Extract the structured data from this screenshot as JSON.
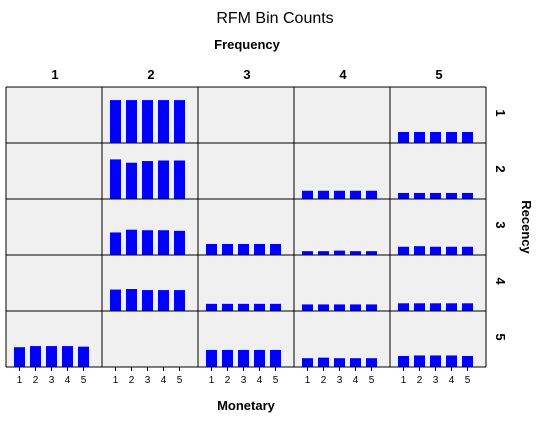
{
  "chart_data": {
    "type": "bar",
    "title": "RFM Bin Counts",
    "column_axis_title": "Frequency",
    "row_axis_title": "Recency",
    "xlabel": "Monetary",
    "frequency_levels": [
      "1",
      "2",
      "3",
      "4",
      "5"
    ],
    "recency_levels": [
      "1",
      "2",
      "3",
      "4",
      "5"
    ],
    "categories": [
      "1",
      "2",
      "3",
      "4",
      "5"
    ],
    "ylim": [
      0,
      1
    ],
    "colors": {
      "bar": "#0000ff",
      "panel_bg": "#f0f0f0",
      "border": "#000000"
    },
    "grid": false,
    "panels": [
      {
        "recency": "1",
        "frequency": "1",
        "values": [
          0,
          0,
          0,
          0,
          0
        ]
      },
      {
        "recency": "1",
        "frequency": "2",
        "values": [
          0.78,
          0.78,
          0.78,
          0.78,
          0.78
        ]
      },
      {
        "recency": "1",
        "frequency": "3",
        "values": [
          0,
          0,
          0,
          0,
          0
        ]
      },
      {
        "recency": "1",
        "frequency": "4",
        "values": [
          0,
          0,
          0,
          0,
          0
        ]
      },
      {
        "recency": "1",
        "frequency": "5",
        "values": [
          0.2,
          0.2,
          0.2,
          0.2,
          0.2
        ]
      },
      {
        "recency": "2",
        "frequency": "1",
        "values": [
          0,
          0,
          0,
          0,
          0
        ]
      },
      {
        "recency": "2",
        "frequency": "2",
        "values": [
          0.72,
          0.66,
          0.69,
          0.7,
          0.7
        ]
      },
      {
        "recency": "2",
        "frequency": "3",
        "values": [
          0,
          0,
          0,
          0,
          0
        ]
      },
      {
        "recency": "2",
        "frequency": "4",
        "values": [
          0.15,
          0.15,
          0.15,
          0.15,
          0.15
        ]
      },
      {
        "recency": "2",
        "frequency": "5",
        "values": [
          0.11,
          0.11,
          0.11,
          0.11,
          0.11
        ]
      },
      {
        "recency": "3",
        "frequency": "1",
        "values": [
          0,
          0,
          0,
          0,
          0
        ]
      },
      {
        "recency": "3",
        "frequency": "2",
        "values": [
          0.41,
          0.46,
          0.45,
          0.45,
          0.44
        ]
      },
      {
        "recency": "3",
        "frequency": "3",
        "values": [
          0.2,
          0.2,
          0.2,
          0.2,
          0.2
        ]
      },
      {
        "recency": "3",
        "frequency": "4",
        "values": [
          0.07,
          0.07,
          0.08,
          0.07,
          0.07
        ]
      },
      {
        "recency": "3",
        "frequency": "5",
        "values": [
          0.15,
          0.16,
          0.15,
          0.15,
          0.15
        ]
      },
      {
        "recency": "4",
        "frequency": "1",
        "values": [
          0,
          0,
          0,
          0,
          0
        ]
      },
      {
        "recency": "4",
        "frequency": "2",
        "values": [
          0.39,
          0.4,
          0.38,
          0.38,
          0.38
        ]
      },
      {
        "recency": "4",
        "frequency": "3",
        "values": [
          0.13,
          0.13,
          0.13,
          0.13,
          0.13
        ]
      },
      {
        "recency": "4",
        "frequency": "4",
        "values": [
          0.12,
          0.12,
          0.12,
          0.12,
          0.12
        ]
      },
      {
        "recency": "4",
        "frequency": "5",
        "values": [
          0.14,
          0.14,
          0.14,
          0.14,
          0.14
        ]
      },
      {
        "recency": "5",
        "frequency": "1",
        "values": [
          0.36,
          0.38,
          0.38,
          0.38,
          0.37
        ]
      },
      {
        "recency": "5",
        "frequency": "2",
        "values": [
          0,
          0,
          0,
          0,
          0
        ]
      },
      {
        "recency": "5",
        "frequency": "3",
        "values": [
          0.31,
          0.31,
          0.31,
          0.31,
          0.31
        ]
      },
      {
        "recency": "5",
        "frequency": "4",
        "values": [
          0.16,
          0.17,
          0.16,
          0.16,
          0.16
        ]
      },
      {
        "recency": "5",
        "frequency": "5",
        "values": [
          0.2,
          0.21,
          0.21,
          0.21,
          0.2
        ]
      }
    ]
  }
}
